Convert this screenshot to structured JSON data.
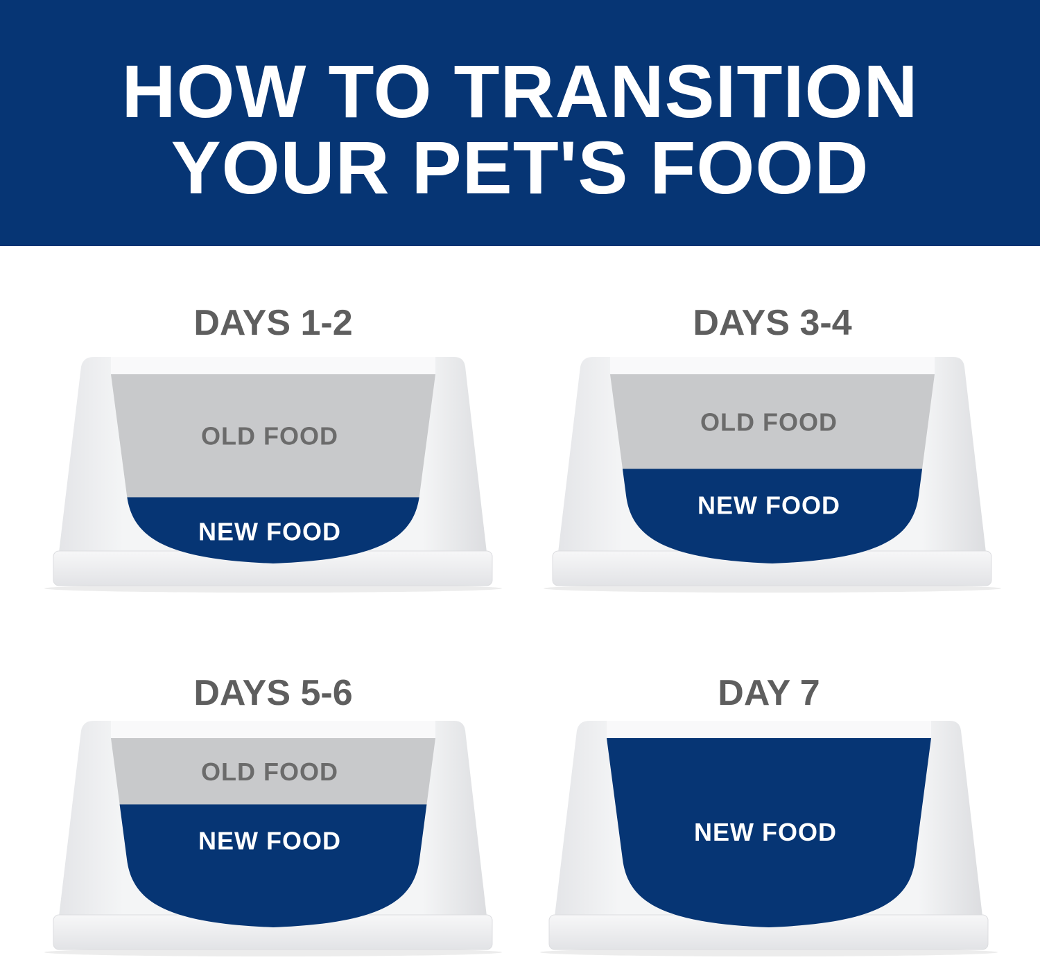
{
  "header": {
    "title_line1": "HOW TO TRANSITION",
    "title_line2": "YOUR PET'S FOOD"
  },
  "colors": {
    "brand_blue": "#063574",
    "old_food_gray": "#c8c9cb",
    "bowl_white": "#eeeff1",
    "label_gray": "#5e5e5e"
  },
  "steps": [
    {
      "day_label": "DAYS 1-2",
      "old_label": "OLD FOOD",
      "new_label": "NEW FOOD",
      "new_food_fraction": 0.35
    },
    {
      "day_label": "DAYS 3-4",
      "old_label": "OLD FOOD",
      "new_label": "NEW FOOD",
      "new_food_fraction": 0.5
    },
    {
      "day_label": "DAYS 5-6",
      "old_label": "OLD FOOD",
      "new_label": "NEW FOOD",
      "new_food_fraction": 0.65
    },
    {
      "day_label": "DAY 7",
      "old_label": "",
      "new_label": "NEW FOOD",
      "new_food_fraction": 1.0
    }
  ]
}
